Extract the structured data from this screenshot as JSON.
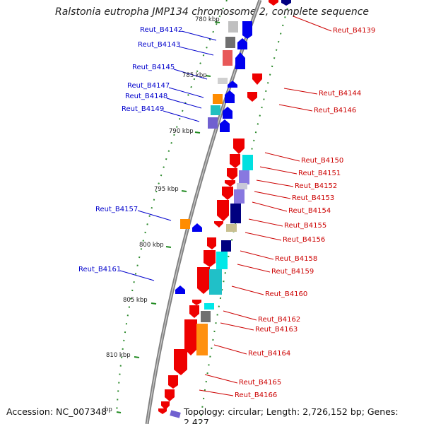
{
  "title": "Ralstonia eutropha JMP134 chromosome 2, complete sequence",
  "footer": {
    "accession": "Accession: NC_007348",
    "topology": "Topology: circular; Length: 2,726,152 bp; Genes: 2,427"
  },
  "ticks": [
    "780 kbp",
    "785 kbp",
    "790 kbp",
    "795 kbp",
    "800 kbp",
    "805 kbp",
    "810 kbp",
    "bp"
  ],
  "colors": {
    "forward_label": "#0000cc",
    "reverse_label": "#cc0000",
    "backbone": "#808080",
    "tick": "#228b22"
  },
  "genes_left": [
    "Reut_B4142",
    "Reut_B4143",
    "Reut_B4145",
    "Reut_B4147",
    "Reut_B4148",
    "Reut_B4149",
    "Reut_B4157",
    "Reut_B4161"
  ],
  "genes_right": [
    "Reut_B4139",
    "Reut_B4144",
    "Reut_B4146",
    "Reut_B4150",
    "Reut_B4151",
    "Reut_B4152",
    "Reut_B4153",
    "Reut_B4154",
    "Reut_B4155",
    "Reut_B4156",
    "Reut_B4158",
    "Reut_B4159",
    "Reut_B4160",
    "Reut_B4162",
    "Reut_B4163",
    "Reut_B4164",
    "Reut_B4165",
    "Reut_B4166"
  ]
}
